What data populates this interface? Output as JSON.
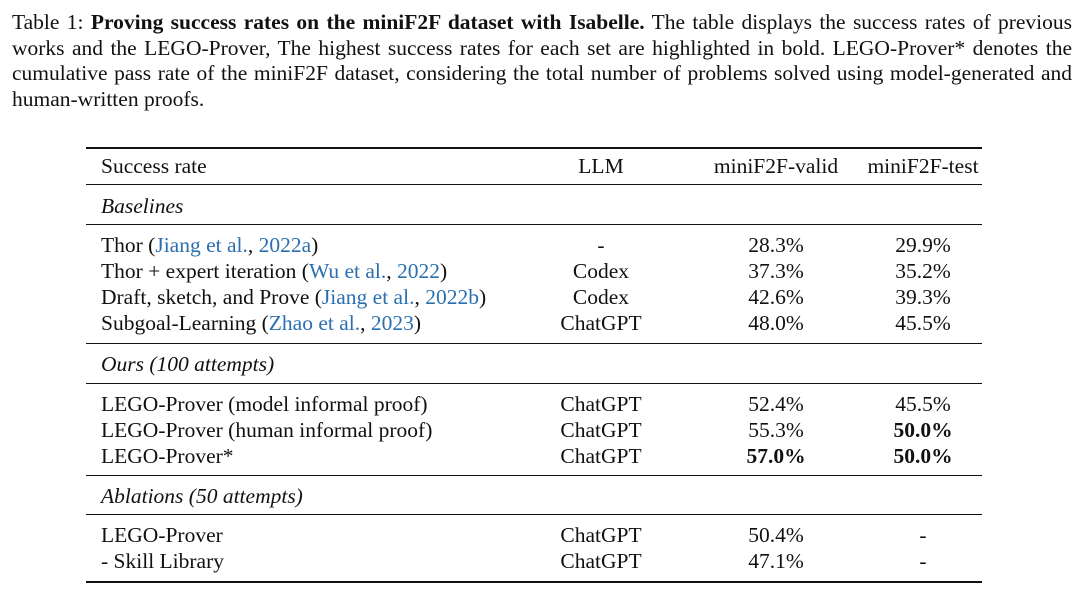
{
  "caption": {
    "label": "Table 1: ",
    "title": "Proving success rates on the miniF2F dataset with Isabelle.",
    "text": " The table displays the success rates of previous works and the LEGO-Prover, The highest success rates for each set are highlighted in bold. LEGO-Prover* denotes the cumulative pass rate of the miniF2F dataset, considering the total number of problems solved using model-generated and human-written proofs."
  },
  "table": {
    "headers": [
      "Success rate",
      "LLM",
      "miniF2F-valid",
      "miniF2F-test"
    ],
    "sections": {
      "baselines": "Baselines",
      "ours": "Ours (100 attempts)",
      "ablations": "Ablations (50 attempts)"
    },
    "baselines": [
      {
        "name": "Thor (",
        "cite_a": "Jiang et al.",
        "sep": ", ",
        "cite_b": "2022a",
        "end": ")",
        "llm": "-",
        "valid": "28.3%",
        "test": "29.9%"
      },
      {
        "name": "Thor + expert iteration (",
        "cite_a": "Wu et al.",
        "sep": ", ",
        "cite_b": "2022",
        "end": ")",
        "llm": "Codex",
        "valid": "37.3%",
        "test": "35.2%"
      },
      {
        "name": "Draft, sketch, and Prove (",
        "cite_a": "Jiang et al.",
        "sep": ", ",
        "cite_b": "2022b",
        "end": ")",
        "llm": "Codex",
        "valid": "42.6%",
        "test": "39.3%"
      },
      {
        "name": "Subgoal-Learning (",
        "cite_a": "Zhao et al.",
        "sep": ", ",
        "cite_b": "2023",
        "end": ")",
        "llm": "ChatGPT",
        "valid": "48.0%",
        "test": "45.5%"
      }
    ],
    "ours": [
      {
        "name": "LEGO-Prover (model informal proof)",
        "llm": "ChatGPT",
        "valid": "52.4%",
        "test": "45.5%"
      },
      {
        "name": "LEGO-Prover (human informal proof)",
        "llm": "ChatGPT",
        "valid": "55.3%",
        "test": "50.0%"
      },
      {
        "name": "LEGO-Prover*",
        "llm": "ChatGPT",
        "valid": "57.0%",
        "test": "50.0%"
      }
    ],
    "ablations": [
      {
        "name": "LEGO-Prover",
        "llm": "ChatGPT",
        "valid": "50.4%",
        "test": "-"
      },
      {
        "name": "- Skill Library",
        "llm": "ChatGPT",
        "valid": "47.1%",
        "test": "-"
      }
    ]
  }
}
